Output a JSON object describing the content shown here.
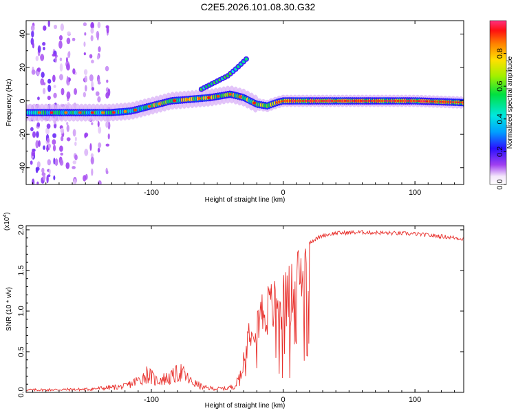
{
  "title": "C2E5.2026.101.08.30.G32",
  "colors": {
    "snr_line": "#e8302c",
    "axis": "#000000",
    "background": "#ffffff"
  },
  "chart_data": [
    {
      "type": "heatmap",
      "name": "spectrogram",
      "xlabel": "Height of straight line (km)",
      "ylabel": "Frequency (Hz)",
      "xlim": [
        -195,
        137
      ],
      "ylim": [
        -50,
        48
      ],
      "xticks": [
        -100,
        0,
        100
      ],
      "xtick_labels": [
        "-100",
        "0",
        "100"
      ],
      "yticks": [
        40,
        20,
        0,
        -20,
        -40
      ],
      "ytick_labels": [
        "40",
        "20",
        "0",
        "-20",
        "-40"
      ],
      "colorbar": {
        "label": "Normalized spectral amplitude",
        "range": [
          0.0,
          1.0
        ],
        "ticks": [
          0.0,
          0.2,
          0.4,
          0.6,
          0.8
        ],
        "tick_labels": [
          "0.0",
          "0.2",
          "0.4",
          "0.6",
          "0.8"
        ]
      },
      "main_track": [
        [
          -195,
          -7
        ],
        [
          -175,
          -7
        ],
        [
          -150,
          -7
        ],
        [
          -130,
          -7
        ],
        [
          -115,
          -6
        ],
        [
          -100,
          -3
        ],
        [
          -85,
          0
        ],
        [
          -70,
          1
        ],
        [
          -55,
          2
        ],
        [
          -40,
          4
        ],
        [
          -30,
          2
        ],
        [
          -20,
          -2
        ],
        [
          -12,
          -3
        ],
        [
          -5,
          -1
        ],
        [
          0,
          0
        ],
        [
          20,
          0
        ],
        [
          60,
          0
        ],
        [
          100,
          0
        ],
        [
          137,
          -1
        ]
      ],
      "upper_branch": [
        [
          -62,
          7
        ],
        [
          -52,
          11
        ],
        [
          -42,
          15
        ],
        [
          -36,
          19
        ],
        [
          -32,
          22
        ],
        [
          -28,
          25
        ]
      ]
    },
    {
      "type": "line",
      "name": "snr",
      "xlabel": "Height of straight line (km)",
      "ylabel": "SNR (10 * v/v)",
      "multiplier_label": "(x10",
      "multiplier_exp": "4",
      "multiplier_close": ")",
      "xlim": [
        -195,
        137
      ],
      "ylim": [
        0.0,
        2.05
      ],
      "xticks": [
        -100,
        0,
        100
      ],
      "xtick_labels": [
        "-100",
        "0",
        "100"
      ],
      "yticks": [
        0.0,
        0.5,
        1.0,
        1.5,
        2.0
      ],
      "ytick_labels": [
        "0.0",
        "0.5",
        "1.0",
        "1.5",
        "2.0"
      ],
      "series": [
        {
          "name": "SNR",
          "envelope": [
            [
              -195,
              0.04
            ],
            [
              -150,
              0.05
            ],
            [
              -120,
              0.1
            ],
            [
              -108,
              0.22
            ],
            [
              -103,
              0.32
            ],
            [
              -97,
              0.2
            ],
            [
              -85,
              0.25
            ],
            [
              -78,
              0.35
            ],
            [
              -70,
              0.18
            ],
            [
              -60,
              0.08
            ],
            [
              -50,
              0.06
            ],
            [
              -42,
              0.07
            ],
            [
              -36,
              0.12
            ],
            [
              -32,
              0.3
            ],
            [
              -29,
              0.6
            ],
            [
              -25,
              1.0
            ],
            [
              -20,
              1.1
            ],
            [
              -15,
              1.2
            ],
            [
              -10,
              1.25
            ],
            [
              -5,
              1.3
            ],
            [
              0,
              1.35
            ],
            [
              5,
              1.45
            ],
            [
              10,
              1.6
            ],
            [
              15,
              1.75
            ],
            [
              20,
              1.85
            ],
            [
              30,
              1.93
            ],
            [
              40,
              1.96
            ],
            [
              60,
              1.97
            ],
            [
              80,
              1.96
            ],
            [
              100,
              1.95
            ],
            [
              120,
              1.92
            ],
            [
              137,
              1.89
            ]
          ]
        }
      ]
    }
  ]
}
